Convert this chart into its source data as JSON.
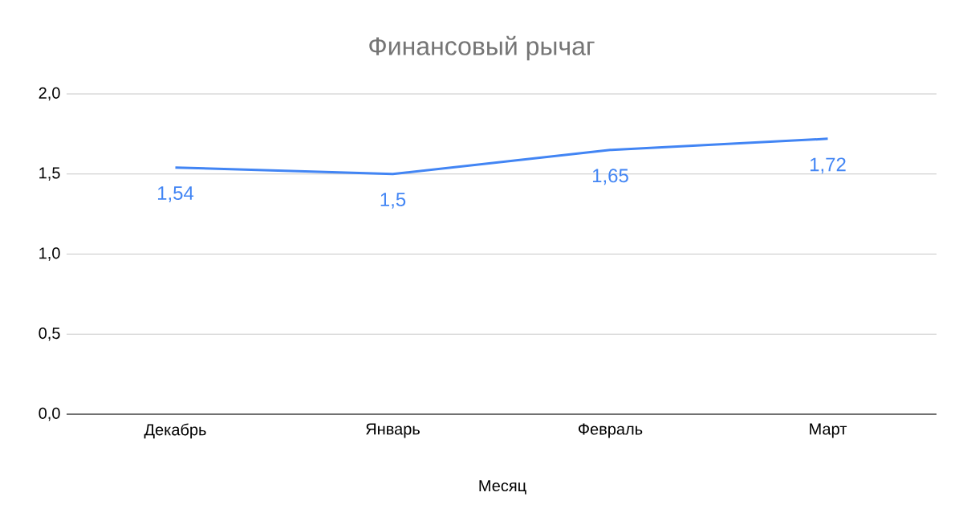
{
  "chart_data": {
    "type": "line",
    "title": "Финансовый рычаг",
    "xlabel": "Месяц",
    "categories": [
      "Декабрь",
      "Январь",
      "Февраль",
      "Март"
    ],
    "values": [
      1.54,
      1.5,
      1.65,
      1.72
    ],
    "value_labels": [
      "1,54",
      "1,5",
      "1,65",
      "1,72"
    ],
    "color": "#4285f4",
    "ylim": [
      0,
      2
    ],
    "yticks": [
      {
        "value": 0,
        "label": "0,0"
      },
      {
        "value": 0.5,
        "label": "0,5"
      },
      {
        "value": 1,
        "label": "1,0"
      },
      {
        "value": 1.5,
        "label": "1,5"
      },
      {
        "value": 2,
        "label": "2,0"
      }
    ],
    "grid": "y"
  }
}
